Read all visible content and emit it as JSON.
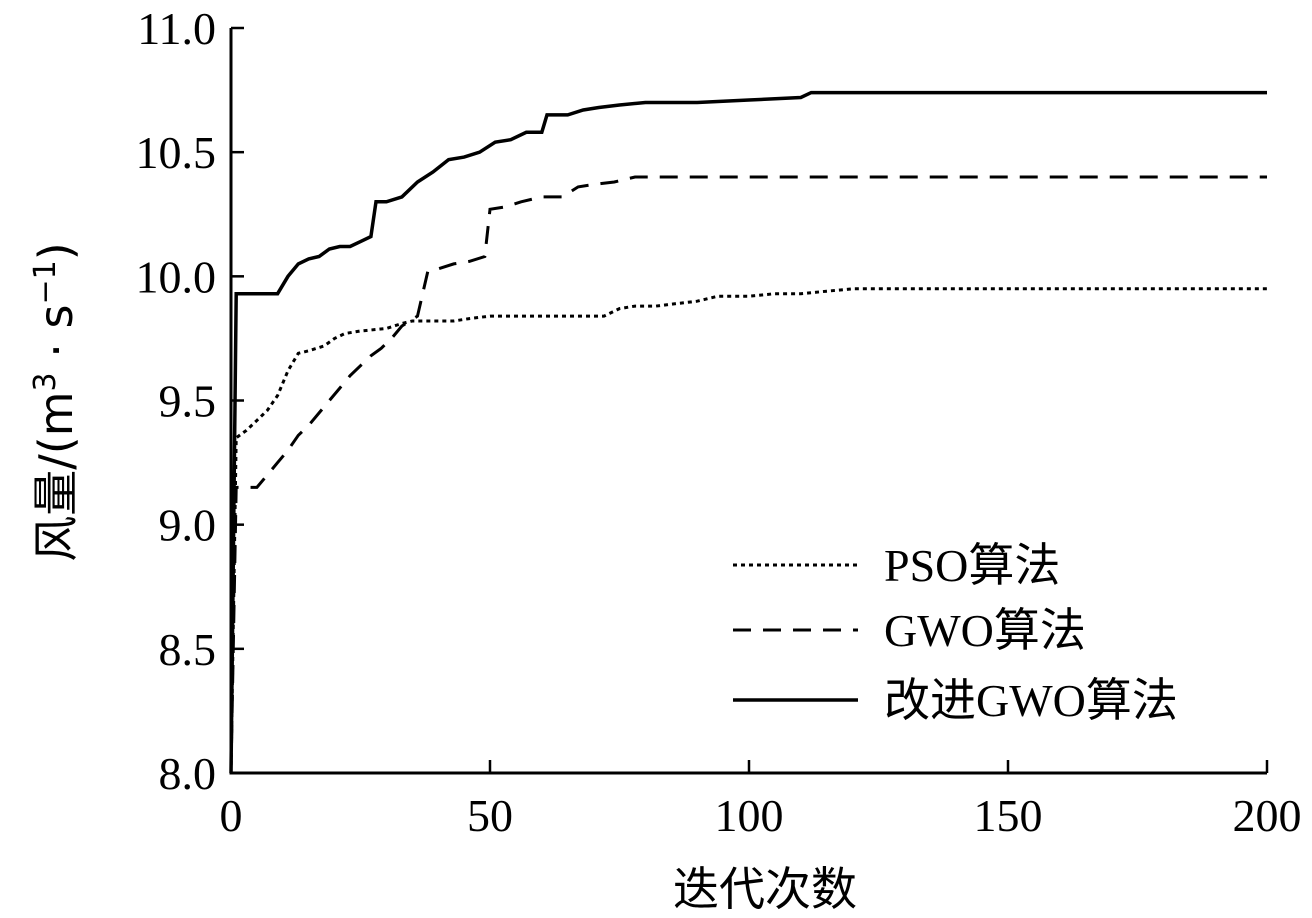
{
  "chart_data": {
    "type": "line",
    "xlabel": "迭代次数",
    "ylabel": "风量/(m³ · s⁻¹)",
    "ylabel_parts": {
      "main": "风量/(m",
      "sup1": "3",
      "mid": " · s",
      "sup2": "−1",
      "end": ")"
    },
    "xlim": [
      0,
      200
    ],
    "ylim": [
      8.0,
      11.0
    ],
    "x_ticks": [
      0,
      50,
      100,
      150,
      200
    ],
    "x_tick_labels": [
      "0",
      "50",
      "100",
      "150",
      "200"
    ],
    "y_ticks": [
      8.0,
      8.5,
      9.0,
      9.5,
      10.0,
      10.5,
      11.0
    ],
    "y_tick_labels": [
      "8.0",
      "8.5",
      "9.0",
      "9.5",
      "10.0",
      "10.5",
      "11.0"
    ],
    "grid": false,
    "legend_position": "lower-right",
    "series": [
      {
        "name": "PSO算法",
        "style": "dotted",
        "points": [
          [
            0,
            8.0
          ],
          [
            1,
            9.35
          ],
          [
            3,
            9.38
          ],
          [
            5,
            9.42
          ],
          [
            7,
            9.46
          ],
          [
            9,
            9.52
          ],
          [
            11,
            9.62
          ],
          [
            13,
            9.69
          ],
          [
            15,
            9.7
          ],
          [
            18,
            9.72
          ],
          [
            20,
            9.75
          ],
          [
            22,
            9.77
          ],
          [
            25,
            9.78
          ],
          [
            30,
            9.79
          ],
          [
            33,
            9.81
          ],
          [
            35,
            9.82
          ],
          [
            40,
            9.82
          ],
          [
            43,
            9.82
          ],
          [
            46,
            9.83
          ],
          [
            50,
            9.84
          ],
          [
            55,
            9.84
          ],
          [
            60,
            9.84
          ],
          [
            65,
            9.84
          ],
          [
            72,
            9.84
          ],
          [
            75,
            9.87
          ],
          [
            78,
            9.88
          ],
          [
            82,
            9.88
          ],
          [
            86,
            9.89
          ],
          [
            90,
            9.9
          ],
          [
            94,
            9.92
          ],
          [
            100,
            9.92
          ],
          [
            105,
            9.93
          ],
          [
            110,
            9.93
          ],
          [
            115,
            9.94
          ],
          [
            120,
            9.95
          ],
          [
            200,
            9.95
          ]
        ]
      },
      {
        "name": "GWO算法",
        "style": "dashed",
        "points": [
          [
            0,
            8.0
          ],
          [
            1,
            9.15
          ],
          [
            5,
            9.15
          ],
          [
            7,
            9.2
          ],
          [
            9,
            9.25
          ],
          [
            11,
            9.3
          ],
          [
            13,
            9.36
          ],
          [
            15,
            9.4
          ],
          [
            17,
            9.45
          ],
          [
            19,
            9.5
          ],
          [
            21,
            9.55
          ],
          [
            23,
            9.6
          ],
          [
            25,
            9.64
          ],
          [
            27,
            9.68
          ],
          [
            29,
            9.71
          ],
          [
            31,
            9.75
          ],
          [
            33,
            9.8
          ],
          [
            36,
            9.84
          ],
          [
            38,
            10.02
          ],
          [
            40,
            10.03
          ],
          [
            43,
            10.05
          ],
          [
            46,
            10.06
          ],
          [
            49,
            10.08
          ],
          [
            50,
            10.27
          ],
          [
            53,
            10.28
          ],
          [
            56,
            10.3
          ],
          [
            60,
            10.32
          ],
          [
            64,
            10.32
          ],
          [
            67,
            10.36
          ],
          [
            70,
            10.37
          ],
          [
            74,
            10.38
          ],
          [
            78,
            10.4
          ],
          [
            200,
            10.4
          ]
        ]
      },
      {
        "name": "改进GWO算法",
        "style": "solid",
        "points": [
          [
            0,
            8.0
          ],
          [
            1,
            9.93
          ],
          [
            9,
            9.93
          ],
          [
            11,
            10.0
          ],
          [
            13,
            10.05
          ],
          [
            15,
            10.07
          ],
          [
            17,
            10.08
          ],
          [
            19,
            10.11
          ],
          [
            21,
            10.12
          ],
          [
            23,
            10.12
          ],
          [
            25,
            10.14
          ],
          [
            27,
            10.16
          ],
          [
            28,
            10.3
          ],
          [
            30,
            10.3
          ],
          [
            33,
            10.32
          ],
          [
            36,
            10.38
          ],
          [
            39,
            10.42
          ],
          [
            42,
            10.47
          ],
          [
            45,
            10.48
          ],
          [
            48,
            10.5
          ],
          [
            51,
            10.54
          ],
          [
            54,
            10.55
          ],
          [
            57,
            10.58
          ],
          [
            60,
            10.58
          ],
          [
            61,
            10.65
          ],
          [
            65,
            10.65
          ],
          [
            68,
            10.67
          ],
          [
            71,
            10.68
          ],
          [
            75,
            10.69
          ],
          [
            80,
            10.7
          ],
          [
            90,
            10.7
          ],
          [
            100,
            10.71
          ],
          [
            110,
            10.72
          ],
          [
            112,
            10.74
          ],
          [
            200,
            10.74
          ]
        ]
      }
    ]
  }
}
